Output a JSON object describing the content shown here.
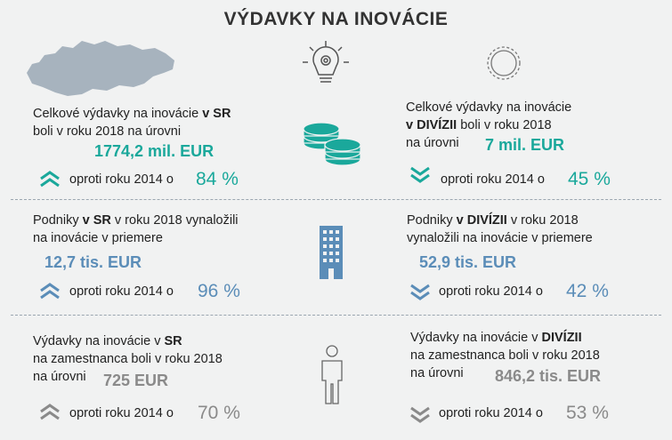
{
  "title": "VÝDAVKY NA INOVÁCIE",
  "colors": {
    "teal": "#1aa89b",
    "blue": "#5b8db8",
    "grey": "#8a8a8a",
    "map": "#a7b3be"
  },
  "row1": {
    "left": {
      "line1_pre": "Celkové výdavky na inovácie ",
      "line1_bold": "v SR",
      "line2": "boli v roku 2018 na úrovni",
      "value": "1774,2 mil. EUR",
      "compare": "oproti roku 2014 o",
      "percent": "84 %",
      "trend": "up"
    },
    "right": {
      "line1": "Celkové výdavky na inovácie",
      "line2_bold": "v DIVÍZII",
      "line2_post": " boli v roku 2018",
      "line3": "na úrovni",
      "value": "7 mil. EUR",
      "compare": "oproti roku 2014 o",
      "percent": "45 %",
      "trend": "down"
    }
  },
  "row2": {
    "left": {
      "line1_pre": "Podniky ",
      "line1_bold": "v SR",
      "line1_post": " v roku 2018 vynaložili",
      "line2": "na inovácie v priemere",
      "value": "12,7 tis. EUR",
      "compare": "oproti roku 2014 o",
      "percent": "96 %",
      "trend": "up"
    },
    "right": {
      "line1_pre": "Podniky ",
      "line1_bold": "v DIVÍZII",
      "line1_post": " v roku 2018",
      "line2": "vynaložili na inovácie v priemere",
      "value": "52,9 tis. EUR",
      "compare": "oproti roku 2014 o",
      "percent": "42 %",
      "trend": "down"
    }
  },
  "row3": {
    "left": {
      "line1_pre": "Výdavky na inovácie v ",
      "line1_bold": "SR",
      "line2": "na zamestnanca boli v roku 2018",
      "line3": "na úrovni",
      "value": "725 EUR",
      "compare": "oproti roku 2014 o",
      "percent": "70 %",
      "trend": "up"
    },
    "right": {
      "line1_pre": "Výdavky na inovácie v ",
      "line1_bold": "DIVÍZII",
      "line2": "na zamestnanca boli v roku 2018",
      "line3": "na úrovni",
      "value": "846,2 tis. EUR",
      "compare": "oproti roku 2014 o",
      "percent": "53 %",
      "trend": "down"
    }
  },
  "icons": [
    "slovakia-map-icon",
    "lightbulb-gear-icon",
    "gear-icon",
    "coins-icon",
    "building-icon",
    "person-icon"
  ]
}
